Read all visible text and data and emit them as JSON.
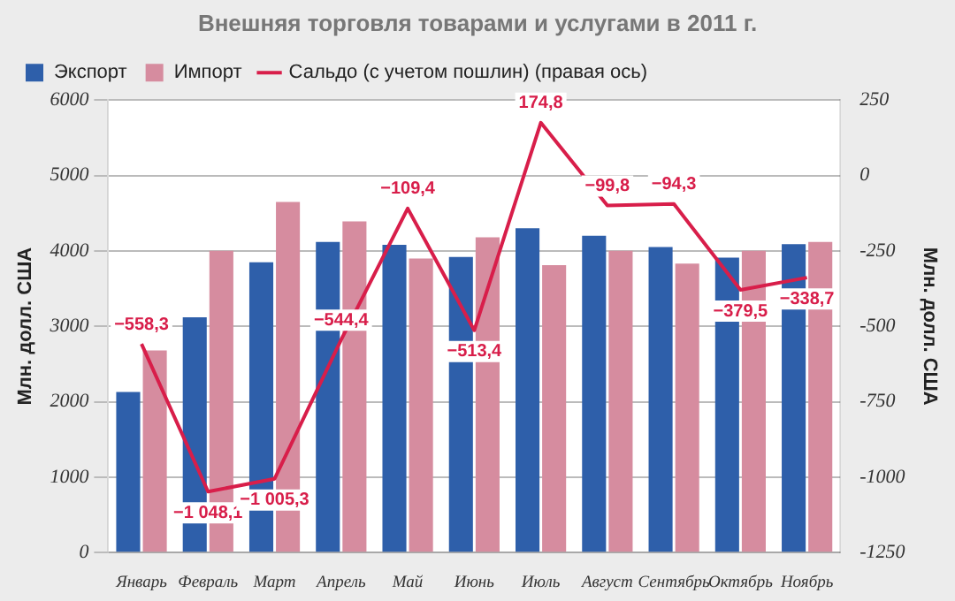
{
  "chart_data": {
    "type": "bar",
    "title": "Внешняя торговля товарами и услугами в 2011 г.",
    "ylabel": "Млн. долл. США",
    "y2label": "Млн. долл. США",
    "categories": [
      "Январь",
      "Февраль",
      "Март",
      "Апрель",
      "Май",
      "Июнь",
      "Июль",
      "Август",
      "Сентябрь",
      "Октябрь",
      "Ноябрь"
    ],
    "series": [
      {
        "name": "Экспорт",
        "color": "#2e5faa",
        "values": [
          2130,
          3120,
          3850,
          4120,
          4080,
          3920,
          4300,
          4200,
          4050,
          3910,
          4090
        ]
      },
      {
        "name": "Импорт",
        "color": "#d68c9f",
        "values": [
          2680,
          4000,
          4650,
          4390,
          3900,
          4180,
          3810,
          4000,
          3830,
          4000,
          4120
        ]
      },
      {
        "name": "Сальдо (с учетом пошлин) (правая ось)",
        "type": "line",
        "axis": "y2",
        "color": "#d81e4a",
        "values": [
          -558.3,
          -1048.1,
          -1005.3,
          -544.4,
          -109.4,
          -513.4,
          174.8,
          -99.8,
          -94.3,
          -379.5,
          -338.7
        ],
        "value_labels": [
          "−558,3",
          "−1 048,1",
          "−1 005,3",
          "−544,4",
          "−109,4",
          "−513,4",
          "174,8",
          "−99,8",
          "−94,3",
          "−379,5",
          "−338,7"
        ]
      }
    ],
    "ylim": [
      0,
      6000
    ],
    "yticks": [
      0,
      1000,
      2000,
      3000,
      4000,
      5000,
      6000
    ],
    "y2lim": [
      -1250,
      250
    ],
    "y2ticks": [
      -1250,
      -1000,
      -750,
      -500,
      -250,
      0,
      250
    ],
    "grid": "y",
    "legend": "top left",
    "marker": "none",
    "line_style": "solid"
  }
}
